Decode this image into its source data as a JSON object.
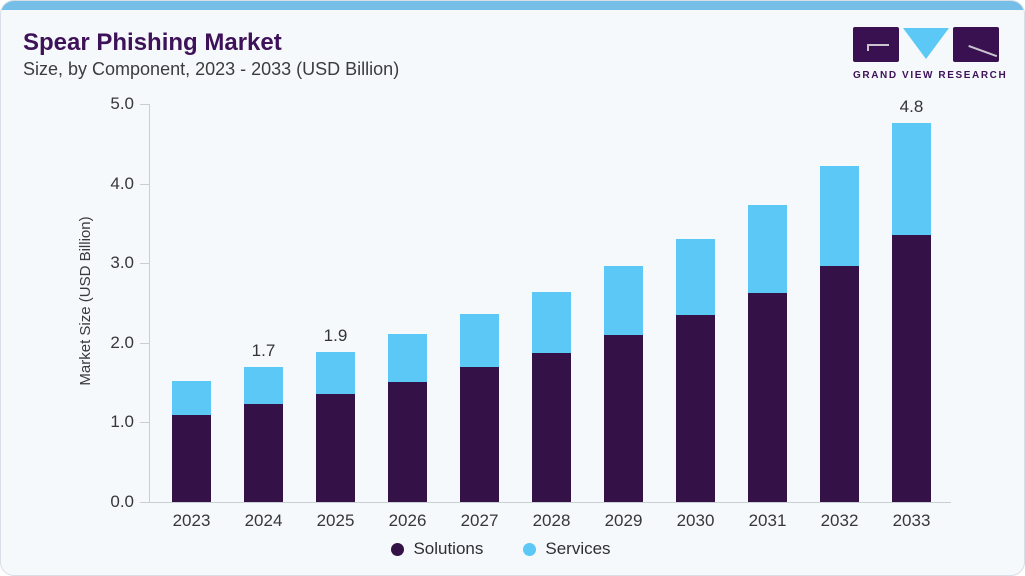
{
  "header": {
    "title": "Spear Phishing Market",
    "subtitle": "Size, by Component, 2023 - 2033 (USD Billion)"
  },
  "logo": {
    "text": "GRAND VIEW RESEARCH",
    "triangle_color": "#5BC8F5",
    "rect_color": "#3A1150"
  },
  "colors": {
    "card_background": "#F5F9FC",
    "top_accent": "#74BEE8",
    "title": "#3E1258",
    "axis": "#C9CED3",
    "solutions": "#341247",
    "services": "#5BC8F5"
  },
  "chart_data": {
    "type": "bar",
    "stacked": true,
    "title": "Spear Phishing Market Size, by Component, 2023 - 2033 (USD Billion)",
    "xlabel": "",
    "ylabel": "Market Size (USD Billion)",
    "ylim": [
      0,
      5
    ],
    "yticks": [
      "0.0",
      "1.0",
      "2.0",
      "3.0",
      "4.0",
      "5.0"
    ],
    "grid": false,
    "legend_position": "bottom",
    "categories": [
      "2023",
      "2024",
      "2025",
      "2026",
      "2027",
      "2028",
      "2029",
      "2030",
      "2031",
      "2032",
      "2033"
    ],
    "series": [
      {
        "name": "Solutions",
        "color": "#341247",
        "values": [
          1.09,
          1.23,
          1.36,
          1.51,
          1.69,
          1.87,
          2.1,
          2.35,
          2.63,
          2.97,
          3.36
        ]
      },
      {
        "name": "Services",
        "color": "#5BC8F5",
        "values": [
          0.43,
          0.47,
          0.53,
          0.6,
          0.67,
          0.77,
          0.86,
          0.96,
          1.1,
          1.25,
          1.4
        ]
      }
    ],
    "total_labels": {
      "2024": "1.7",
      "2025": "1.9",
      "2033": "4.8"
    }
  }
}
